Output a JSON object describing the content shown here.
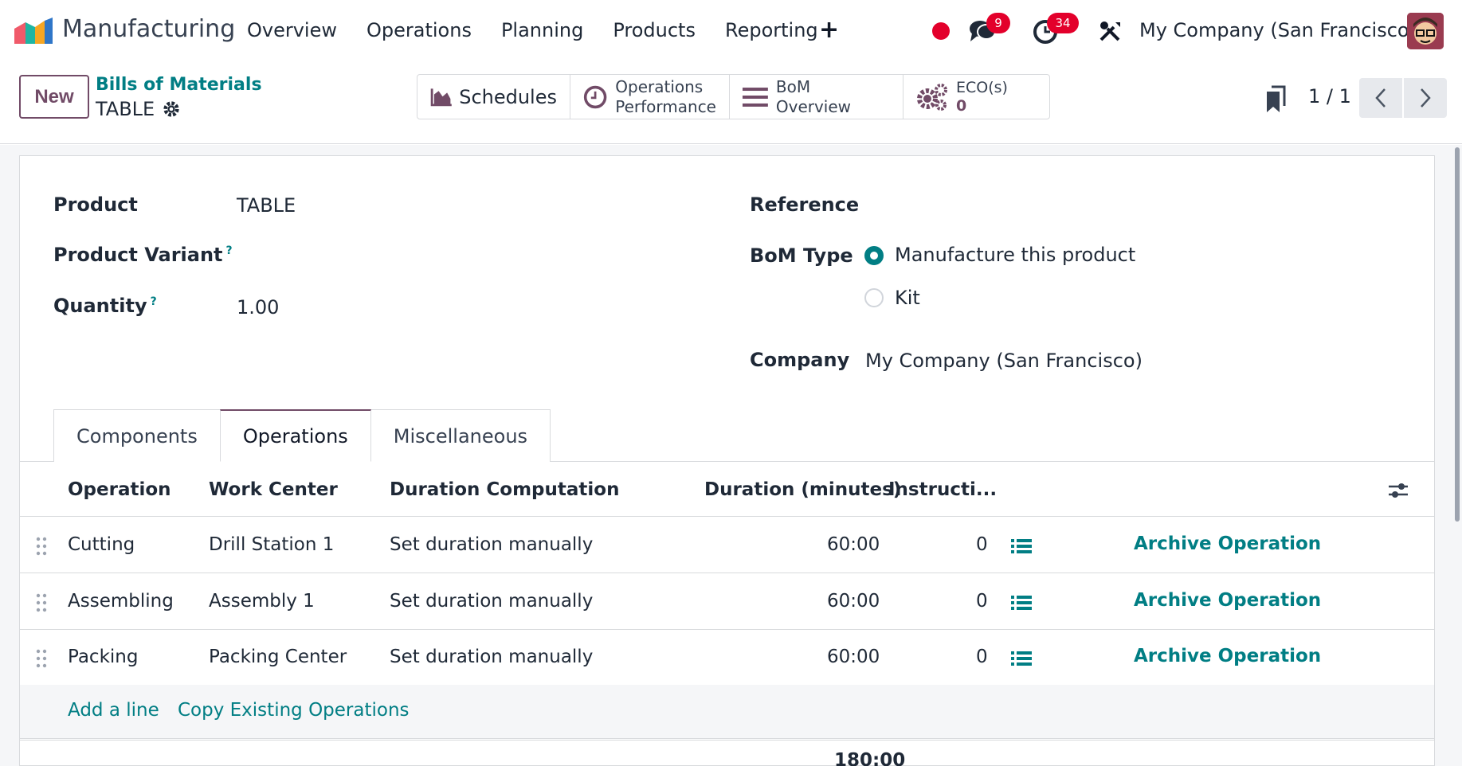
{
  "navbar": {
    "app_name": "Manufacturing",
    "menu": [
      "Overview",
      "Operations",
      "Planning",
      "Products",
      "Reporting"
    ],
    "messages_count": "9",
    "activities_count": "34",
    "company": "My Company (San Francisco)"
  },
  "control": {
    "new_label": "New",
    "breadcrumb": "Bills of Materials",
    "record_name": "TABLE",
    "smart_buttons": {
      "schedules": "Schedules",
      "ops_perf_line1": "Operations",
      "ops_perf_line2": "Performance",
      "bom_overview": "BoM Overview",
      "eco_label": "ECO(s)",
      "eco_count": "0"
    },
    "pager": "1 / 1"
  },
  "form": {
    "product_label": "Product",
    "product_value": "TABLE",
    "variant_label": "Product Variant",
    "quantity_label": "Quantity",
    "quantity_value": "1.00",
    "help_mark": "?",
    "reference_label": "Reference",
    "bom_type_label": "BoM Type",
    "bom_type_options": [
      "Manufacture this product",
      "Kit"
    ],
    "bom_type_selected": "Manufacture this product",
    "company_label": "Company",
    "company_value": "My Company (San Francisco)"
  },
  "tabs": [
    "Components",
    "Operations",
    "Miscellaneous"
  ],
  "active_tab": "Operations",
  "operations_table": {
    "columns": [
      "Operation",
      "Work Center",
      "Duration Computation",
      "Duration (minutes)",
      "Instructi..."
    ],
    "rows": [
      {
        "operation": "Cutting",
        "work_center": "Drill Station 1",
        "computation": "Set duration manually",
        "duration": "60:00",
        "instructions": "0",
        "action": "Archive Operation"
      },
      {
        "operation": "Assembling",
        "work_center": "Assembly 1",
        "computation": "Set duration manually",
        "duration": "60:00",
        "instructions": "0",
        "action": "Archive Operation"
      },
      {
        "operation": "Packing",
        "work_center": "Packing Center",
        "computation": "Set duration manually",
        "duration": "60:00",
        "instructions": "0",
        "action": "Archive Operation"
      }
    ],
    "add_line": "Add a line",
    "copy_existing": "Copy Existing Operations",
    "total_duration": "180:00"
  },
  "colors": {
    "brand": "#714b67",
    "link": "#017e84",
    "badge": "#e3002b"
  }
}
